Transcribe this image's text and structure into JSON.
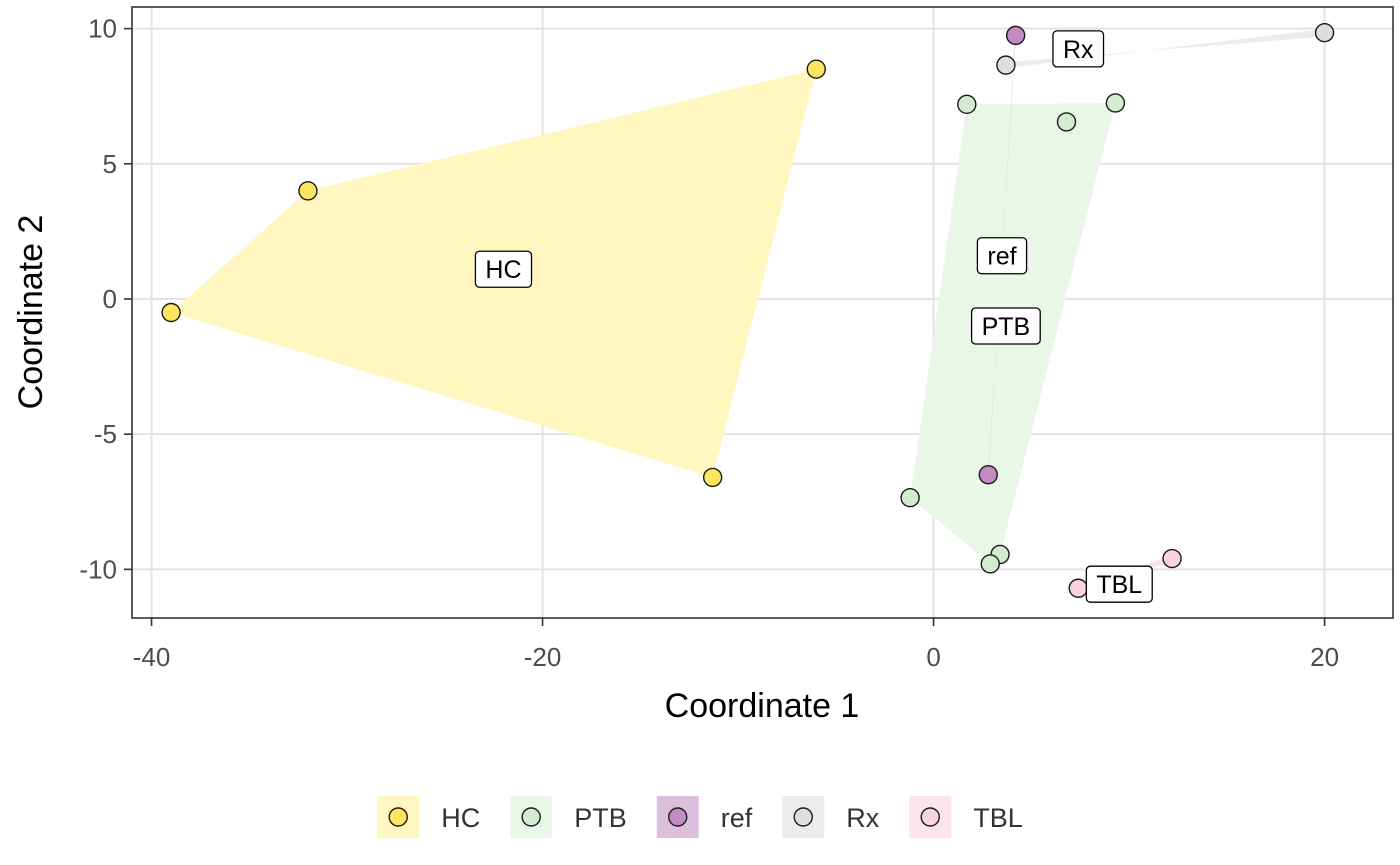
{
  "chart_data": {
    "type": "scatter",
    "xlabel": "Coordinate 1",
    "ylabel": "Coordinate 2",
    "xlim": [
      -41,
      23.5
    ],
    "ylim": [
      -11.8,
      10.8
    ],
    "x_ticks": [
      -40,
      -20,
      0,
      20
    ],
    "x_tick_labels": [
      "-40",
      "-20",
      "0",
      "20"
    ],
    "y_ticks": [
      -10,
      -5,
      0,
      5,
      10
    ],
    "y_tick_labels": [
      "-10",
      "-5",
      "0",
      "5",
      "10"
    ],
    "grid": true,
    "legend_position": "bottom",
    "series": [
      {
        "name": "HC",
        "color": "#fde560",
        "fill": "#fff6c0",
        "points": [
          {
            "x": -39.0,
            "y": -0.5
          },
          {
            "x": -32.0,
            "y": 4.0
          },
          {
            "x": -6.0,
            "y": 8.5
          },
          {
            "x": -11.3,
            "y": -6.6
          }
        ],
        "label": {
          "text": "HC",
          "x": -22.0,
          "y": 1.1
        }
      },
      {
        "name": "PTB",
        "color": "#d3ecd0",
        "fill": "#eaf6e8",
        "points": [
          {
            "x": 1.7,
            "y": 7.2
          },
          {
            "x": 9.3,
            "y": 7.25
          },
          {
            "x": 6.8,
            "y": 6.55
          },
          {
            "x": -1.2,
            "y": -7.35
          },
          {
            "x": 3.4,
            "y": -9.45
          },
          {
            "x": 2.9,
            "y": -9.8
          }
        ],
        "label": {
          "text": "PTB",
          "x": 3.7,
          "y": -1.0
        }
      },
      {
        "name": "ref",
        "color": "#c48bc3",
        "fill": "#dcbfdc",
        "points": [
          {
            "x": 4.2,
            "y": 9.75
          },
          {
            "x": 2.8,
            "y": -6.5
          }
        ],
        "label": {
          "text": "ref",
          "x": 3.5,
          "y": 1.6
        }
      },
      {
        "name": "Rx",
        "color": "#dedede",
        "fill": "#ececec",
        "points": [
          {
            "x": 3.7,
            "y": 8.65
          },
          {
            "x": 20.0,
            "y": 9.85
          }
        ],
        "label": {
          "text": "Rx",
          "x": 7.4,
          "y": 9.25
        }
      },
      {
        "name": "TBL",
        "color": "#f8d4e3",
        "fill": "#fbe4ee",
        "points": [
          {
            "x": 7.4,
            "y": -10.7
          },
          {
            "x": 12.2,
            "y": -9.6
          }
        ],
        "label": {
          "text": "TBL",
          "x": 9.5,
          "y": -10.55
        }
      }
    ]
  }
}
